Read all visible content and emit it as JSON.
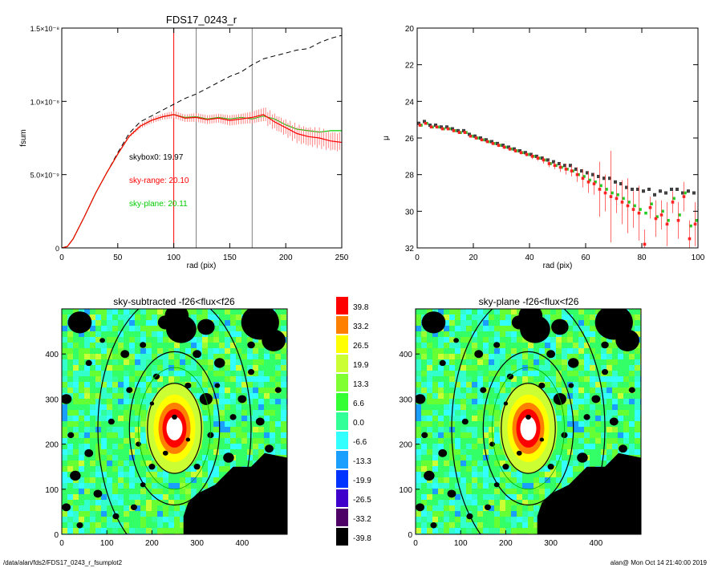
{
  "figure": {
    "footer_left": "/data/alan/fds2/FDS17_0243_r_fsumplot2",
    "footer_right": "alan@  Mon Oct 14 21:40:00 2019"
  },
  "chart_data": [
    {
      "type": "line",
      "title": "FDS17_0243_r",
      "xlabel": "rad (pix)",
      "ylabel": "fsum",
      "xlim": [
        0,
        250
      ],
      "ylim": [
        0,
        1.5e-08
      ],
      "x_ticks": [
        "0",
        "50",
        "100",
        "150",
        "200",
        "250"
      ],
      "y_ticks": [
        "0",
        "5.0×10⁻⁹",
        "1.0×10⁻⁸",
        "1.5×10⁻⁸"
      ],
      "vertical_lines": [
        {
          "x": 100,
          "color": "#ff0000"
        },
        {
          "x": 120,
          "color": "#808080"
        },
        {
          "x": 170,
          "color": "#808080"
        }
      ],
      "annotations": [
        {
          "text": "skybox0: 19.97",
          "color": "#000000"
        },
        {
          "text": "sky-range: 20.10",
          "color": "#ff0000"
        },
        {
          "text": "sky-plane: 20.11",
          "color": "#00cc00"
        }
      ],
      "series": [
        {
          "style": "dashed",
          "color": "#000000",
          "x": [
            0,
            5,
            10,
            20,
            30,
            40,
            50,
            60,
            70,
            80,
            90,
            100,
            110,
            120,
            130,
            140,
            150,
            160,
            170,
            180,
            190,
            200,
            210,
            220,
            230,
            240,
            250
          ],
          "y": [
            0,
            1e-10,
            6e-10,
            2.1e-09,
            3.7e-09,
            5.1e-09,
            6.5e-09,
            7.8e-09,
            8.6e-09,
            9e-09,
            9.4e-09,
            9.8e-09,
            1.02e-08,
            1.05e-08,
            1.09e-08,
            1.13e-08,
            1.17e-08,
            1.2e-08,
            1.25e-08,
            1.29e-08,
            1.31e-08,
            1.33e-08,
            1.35e-08,
            1.36e-08,
            1.4e-08,
            1.43e-08,
            1.45e-08
          ]
        },
        {
          "style": "solid",
          "color": "#00cc00",
          "x": [
            0,
            5,
            10,
            20,
            30,
            40,
            50,
            60,
            70,
            80,
            90,
            100,
            110,
            120,
            130,
            140,
            150,
            160,
            170,
            180,
            190,
            200,
            210,
            220,
            230,
            240,
            250
          ],
          "y": [
            0,
            1e-10,
            6e-10,
            2.1e-09,
            3.7e-09,
            5.1e-09,
            6.4e-09,
            7.6e-09,
            8.3e-09,
            8.7e-09,
            8.95e-09,
            9.1e-09,
            8.9e-09,
            8.95e-09,
            8.8e-09,
            8.9e-09,
            8.8e-09,
            8.9e-09,
            8.8e-09,
            9e-09,
            8.8e-09,
            8.4e-09,
            8.1e-09,
            8e-09,
            7.9e-09,
            8e-09,
            8e-09
          ]
        },
        {
          "style": "solid",
          "color": "#ff0000",
          "error_bars": true,
          "x": [
            0,
            5,
            10,
            20,
            30,
            40,
            50,
            60,
            70,
            80,
            90,
            100,
            110,
            120,
            130,
            140,
            150,
            160,
            170,
            180,
            190,
            200,
            210,
            220,
            230,
            240,
            250
          ],
          "y": [
            0,
            1e-10,
            6e-10,
            2.1e-09,
            3.7e-09,
            5.1e-09,
            6.4e-09,
            7.6e-09,
            8.3e-09,
            8.7e-09,
            8.95e-09,
            9.1e-09,
            8.85e-09,
            8.9e-09,
            8.75e-09,
            8.85e-09,
            8.7e-09,
            8.8e-09,
            8.9e-09,
            9.1e-09,
            8.6e-09,
            8.2e-09,
            7.8e-09,
            7.6e-09,
            7.5e-09,
            7.3e-09,
            7.2e-09
          ],
          "err": [
            0,
            0,
            0,
            0,
            0,
            0,
            5e-11,
            1e-10,
            1.5e-10,
            2e-10,
            2e-10,
            2.5e-10,
            2.5e-10,
            3e-10,
            3e-10,
            3e-10,
            3.5e-10,
            3.5e-10,
            4e-10,
            4.5e-10,
            5e-10,
            5e-10,
            5.5e-10,
            6e-10,
            6e-10,
            6e-10,
            6e-10
          ]
        }
      ]
    },
    {
      "type": "scatter",
      "xlabel": "rad (pix)",
      "ylabel": "μ",
      "xlim": [
        0,
        100
      ],
      "ylim": [
        32,
        20
      ],
      "x_ticks": [
        "0",
        "20",
        "40",
        "60",
        "80",
        "100"
      ],
      "y_ticks": [
        "20",
        "22",
        "24",
        "26",
        "28",
        "30",
        "32"
      ],
      "series": [
        {
          "marker": "square",
          "color": "#444444",
          "x": [
            1,
            3,
            5,
            7,
            9,
            11,
            13,
            15,
            17,
            19,
            21,
            23,
            25,
            27,
            29,
            31,
            33,
            35,
            37,
            39,
            41,
            43,
            45,
            47,
            49,
            51,
            53,
            55,
            57,
            59,
            61,
            63,
            65,
            67,
            69,
            71,
            73,
            75,
            77,
            79,
            81,
            83,
            85,
            87,
            89,
            91,
            93,
            95,
            97,
            99
          ],
          "y": [
            25.2,
            25.1,
            25.3,
            25.3,
            25.4,
            25.4,
            25.5,
            25.6,
            25.6,
            25.8,
            25.9,
            26.0,
            26.1,
            26.2,
            26.3,
            26.4,
            26.5,
            26.6,
            26.7,
            26.8,
            26.9,
            27.0,
            27.1,
            27.2,
            27.3,
            27.4,
            27.5,
            27.5,
            27.7,
            27.8,
            27.9,
            28.0,
            28.1,
            28.2,
            28.2,
            28.4,
            28.5,
            28.7,
            28.8,
            28.8,
            28.9,
            28.8,
            29.1,
            28.9,
            29.0,
            28.8,
            28.8,
            29.0,
            28.9,
            29.0
          ]
        },
        {
          "marker": "square",
          "color": "#22cc22",
          "x": [
            1,
            3,
            5,
            7,
            9,
            11,
            13,
            15,
            17,
            19,
            21,
            23,
            25,
            27,
            29,
            31,
            33,
            35,
            37,
            39,
            41,
            43,
            45,
            47,
            49,
            51,
            53,
            55,
            57,
            59,
            61,
            63,
            65,
            67,
            69,
            71,
            73,
            75,
            77,
            79,
            81,
            83,
            85,
            87,
            89,
            91,
            93,
            95,
            97,
            99
          ],
          "y": [
            25.3,
            25.2,
            25.4,
            25.4,
            25.5,
            25.5,
            25.6,
            25.7,
            25.7,
            25.9,
            26.0,
            26.1,
            26.2,
            26.3,
            26.4,
            26.5,
            26.6,
            26.7,
            26.8,
            26.9,
            27.0,
            27.1,
            27.2,
            27.4,
            27.5,
            27.6,
            27.7,
            27.8,
            28.0,
            28.1,
            28.3,
            28.4,
            28.6,
            28.8,
            29.0,
            29.1,
            29.3,
            29.5,
            29.7,
            29.9,
            30.1,
            29.6,
            30.3,
            30.0,
            30.5,
            29.3,
            30.2,
            29.0,
            30.8,
            30.5
          ]
        },
        {
          "marker": "square",
          "color": "#ff2222",
          "error_bars": true,
          "x": [
            1,
            3,
            5,
            7,
            9,
            11,
            13,
            15,
            17,
            19,
            21,
            23,
            25,
            27,
            29,
            31,
            33,
            35,
            37,
            39,
            41,
            43,
            45,
            47,
            49,
            51,
            53,
            55,
            57,
            59,
            61,
            63,
            65,
            67,
            69,
            71,
            73,
            75,
            77,
            79,
            81,
            83,
            85,
            87,
            89,
            91,
            93,
            95,
            97,
            99
          ],
          "y": [
            25.3,
            25.2,
            25.4,
            25.4,
            25.5,
            25.5,
            25.6,
            25.7,
            25.7,
            25.9,
            26.0,
            26.1,
            26.2,
            26.3,
            26.4,
            26.5,
            26.6,
            26.7,
            26.8,
            26.9,
            27.0,
            27.1,
            27.2,
            27.4,
            27.5,
            27.6,
            27.7,
            27.8,
            28.0,
            28.2,
            28.4,
            28.5,
            28.8,
            29.0,
            29.2,
            29.3,
            29.5,
            29.7,
            29.9,
            30.1,
            31.8,
            29.8,
            30.4,
            30.2,
            30.7,
            29.5,
            30.5,
            29.2,
            31.5,
            30.7
          ],
          "err": [
            0.05,
            0.05,
            0.05,
            0.05,
            0.05,
            0.05,
            0.05,
            0.05,
            0.05,
            0.05,
            0.05,
            0.05,
            0.05,
            0.05,
            0.1,
            0.1,
            0.1,
            0.1,
            0.1,
            0.1,
            0.15,
            0.15,
            0.2,
            0.2,
            0.2,
            0.25,
            0.3,
            0.3,
            0.4,
            0.5,
            0.6,
            0.6,
            1.5,
            1.0,
            2.5,
            0.8,
            1.2,
            1.5,
            1.0,
            1.5,
            0.8,
            0.6,
            1.0,
            0.8,
            1.2,
            0.6,
            1.0,
            0.8,
            1.0,
            1.2
          ]
        }
      ]
    },
    {
      "type": "heatmap",
      "title": "sky-subtracted -f26<flux<f26",
      "xlim": [
        0,
        500
      ],
      "ylim": [
        0,
        500
      ],
      "x_ticks": [
        "0",
        "100",
        "200",
        "300",
        "400"
      ],
      "y_ticks": [
        "0",
        "100",
        "200",
        "300",
        "400"
      ]
    },
    {
      "type": "heatmap",
      "title": "sky-plane -f26<flux<f26",
      "xlim": [
        0,
        500
      ],
      "ylim": [
        0,
        500
      ],
      "x_ticks": [
        "0",
        "100",
        "200",
        "300",
        "400"
      ],
      "y_ticks": [
        "0",
        "100",
        "200",
        "300",
        "400"
      ]
    },
    {
      "type": "colorbar",
      "labels": [
        "39.8",
        "33.2",
        "26.5",
        "19.9",
        "13.3",
        "6.6",
        "0.0",
        "-6.6",
        "-13.3",
        "-19.9",
        "-26.5",
        "-33.2",
        "-39.8"
      ],
      "colors": [
        "#ff0000",
        "#ff8000",
        "#ffff00",
        "#ccff33",
        "#80ff33",
        "#33ff33",
        "#33ff99",
        "#33ffff",
        "#1a9fff",
        "#0033ff",
        "#4000cc",
        "#4d0066",
        "#000000"
      ]
    }
  ]
}
